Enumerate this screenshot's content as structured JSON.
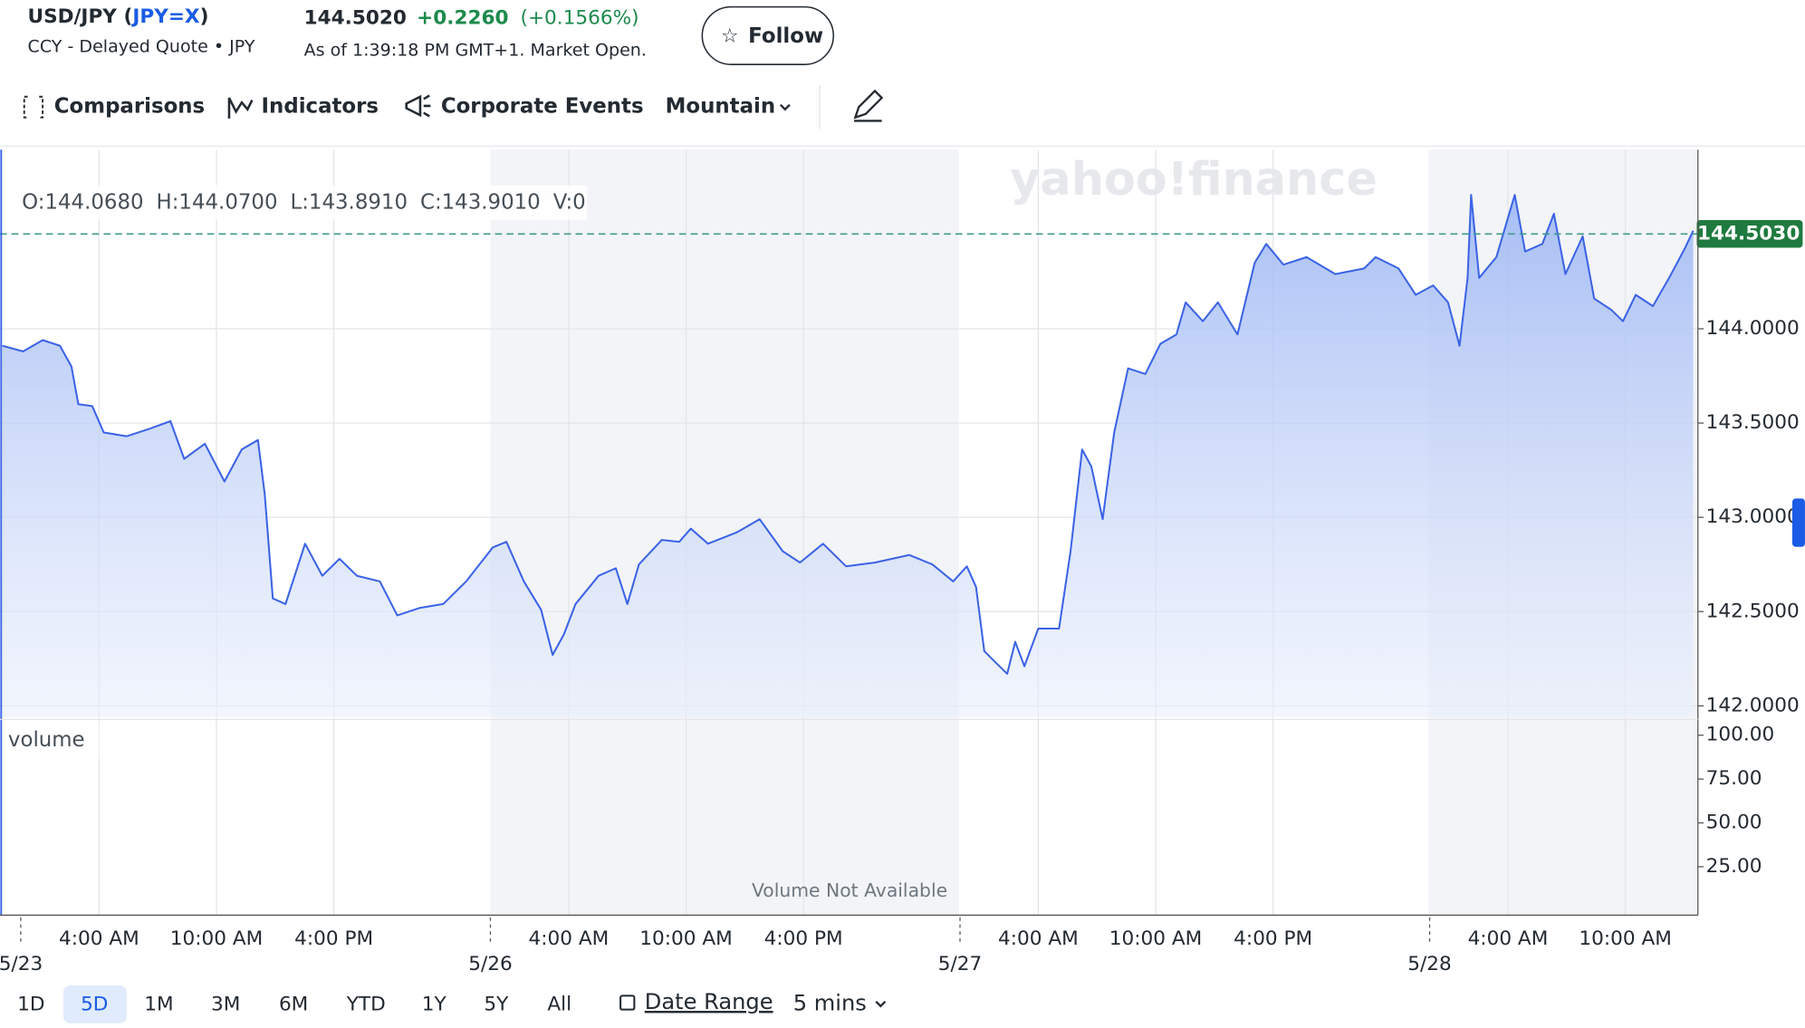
{
  "header": {
    "title_parts": [
      "USD/JPY (",
      "JPY=X",
      ")"
    ],
    "subtitle": "CCY - Delayed Quote • JPY",
    "price": "144.5020",
    "change": "+0.2260",
    "change_percent": "(+0.1566%)",
    "as_of": "As of 1:39:18 PM GMT+1. Market Open.",
    "follow": "Follow"
  },
  "toolbar": [
    "Comparisons",
    "Indicators",
    "Corporate Events",
    "Mountain"
  ],
  "watermark": "yahoo!finance",
  "range_buttons": [
    "1D",
    "5D",
    "1M",
    "3M",
    "6M",
    "YTD",
    "1Y",
    "5Y",
    "All"
  ],
  "selected_range": 1,
  "date_range": "Date Range",
  "interval": "5 mins",
  "chart_data": [
    {
      "type": "area",
      "ohlc": [
        "O:144.0680",
        "H:144.0700",
        "L:143.8910",
        "C:143.9010",
        "V:0"
      ],
      "x": [
        -0.94,
        0.12,
        1.12,
        2.0,
        2.59,
        2.94,
        3.65,
        4.24,
        5.41,
        6.59,
        7.65,
        8.35,
        9.41,
        10.41,
        11.29,
        12.12,
        12.47,
        12.88,
        13.53,
        14.53,
        15.41,
        16.29,
        17.18,
        18.35,
        19.24,
        20.41,
        21.59,
        22.76,
        24.12,
        24.82,
        25.71,
        26.59,
        27.18,
        27.76,
        28.35,
        29.53,
        30.41,
        31.0,
        31.59,
        32.76,
        33.65,
        34.24,
        35.12,
        36.59,
        37.76,
        38.94,
        39.82,
        41.0,
        42.18,
        43.65,
        45.41,
        46.59,
        47.65,
        48.35,
        48.82,
        49.24,
        49.82,
        50.41,
        50.82,
        51.29,
        52.0,
        53.06,
        53.65,
        54.24,
        54.71,
        55.29,
        55.88,
        56.59,
        57.47,
        58.24,
        59.06,
        59.53,
        60.41,
        61.18,
        62.18,
        63.06,
        63.65,
        64.53,
        65.71,
        67.18,
        68.65,
        69.24,
        70.41,
        71.29,
        72.18,
        72.94,
        73.53,
        73.94,
        74.12,
        74.53,
        75.41,
        76.35,
        76.88,
        77.76,
        78.35,
        78.94,
        79.82,
        80.41,
        81.29,
        81.88,
        82.53,
        83.41,
        84.24,
        85.06,
        85.47
      ],
      "series": [
        {
          "name": "USD/JPY",
          "color": "#3b63e6",
          "values": [
            143.91,
            143.88,
            143.94,
            143.91,
            143.8,
            143.6,
            143.59,
            143.45,
            143.43,
            143.47,
            143.51,
            143.31,
            143.39,
            143.19,
            143.36,
            143.41,
            143.12,
            142.57,
            142.54,
            142.86,
            142.69,
            142.78,
            142.69,
            142.66,
            142.48,
            142.52,
            142.54,
            142.66,
            142.84,
            142.87,
            142.66,
            142.51,
            142.27,
            142.38,
            142.54,
            142.69,
            142.73,
            142.54,
            142.75,
            142.88,
            142.87,
            142.94,
            142.86,
            142.92,
            142.99,
            142.82,
            142.76,
            142.86,
            142.74,
            142.76,
            142.8,
            142.75,
            142.66,
            142.74,
            142.63,
            142.29,
            142.23,
            142.17,
            142.34,
            142.21,
            142.41,
            142.41,
            142.82,
            143.36,
            143.27,
            142.99,
            143.45,
            143.79,
            143.76,
            143.92,
            143.97,
            144.14,
            144.04,
            144.14,
            143.97,
            144.35,
            144.45,
            144.34,
            144.38,
            144.29,
            144.32,
            144.38,
            144.32,
            144.18,
            144.23,
            144.14,
            143.91,
            144.27,
            144.71,
            144.27,
            144.38,
            144.71,
            144.41,
            144.45,
            144.61,
            144.29,
            144.49,
            144.16,
            144.1,
            144.04,
            144.18,
            144.12,
            144.27,
            144.43,
            144.52
          ]
        }
      ],
      "xlim": [
        -1.06,
        85.71
      ],
      "xticks": [
        {
          "value": 4,
          "label": "4:00 AM"
        },
        {
          "value": 10,
          "label": "10:00 AM"
        },
        {
          "value": 16,
          "label": "4:00 PM"
        },
        {
          "value": 28,
          "label": "4:00 AM"
        },
        {
          "value": 34,
          "label": "10:00 AM"
        },
        {
          "value": 40,
          "label": "4:00 PM"
        },
        {
          "value": 52,
          "label": "4:00 AM"
        },
        {
          "value": 58,
          "label": "10:00 AM"
        },
        {
          "value": 64,
          "label": "4:00 PM"
        },
        {
          "value": 76,
          "label": "4:00 AM"
        },
        {
          "value": 82,
          "label": "10:00 AM"
        }
      ],
      "xticks_dates": [
        {
          "value": 0,
          "label": "5/23"
        },
        {
          "value": 24,
          "label": "5/26"
        },
        {
          "value": 48,
          "label": "5/27"
        },
        {
          "value": 72,
          "label": "5/28"
        }
      ],
      "ylim": [
        141.94,
        144.95
      ],
      "yticks": [
        {
          "value": 142,
          "label": "142.0000"
        },
        {
          "value": 142.5,
          "label": "142.5000"
        },
        {
          "value": 143,
          "label": "143.0000"
        },
        {
          "value": 143.5,
          "label": "143.5000"
        },
        {
          "value": 144,
          "label": "144.0000"
        }
      ],
      "current": {
        "value": 144.503,
        "label": "144.5030"
      },
      "grid": true
    },
    {
      "type": "bar",
      "label": "volume",
      "annotation": "Volume Not Available",
      "ylim": [
        0,
        107
      ],
      "yticks": [
        {
          "value": 25,
          "label": "25.00"
        },
        {
          "value": 50,
          "label": "50.00"
        },
        {
          "value": 75,
          "label": "75.00"
        },
        {
          "value": 100,
          "label": "100.00"
        }
      ]
    }
  ]
}
